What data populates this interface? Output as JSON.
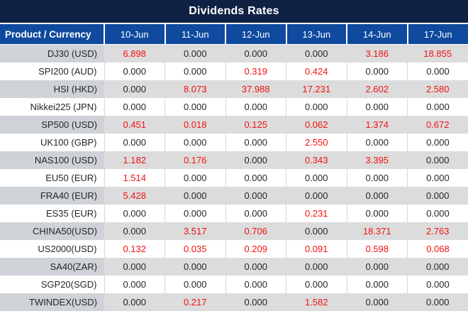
{
  "chart_data": {
    "type": "table",
    "title": "Dividends Rates",
    "columns": [
      "Product / Currency",
      "10-Jun",
      "11-Jun",
      "12-Jun",
      "13-Jun",
      "14-Jun",
      "17-Jun"
    ],
    "rows": [
      {
        "product": "DJ30 (USD)",
        "values": [
          "6.898",
          "0.000",
          "0.000",
          "0.000",
          "3.186",
          "18.855"
        ]
      },
      {
        "product": "SPI200 (AUD)",
        "values": [
          "0.000",
          "0.000",
          "0.319",
          "0.424",
          "0.000",
          "0.000"
        ]
      },
      {
        "product": "HSI (HKD)",
        "values": [
          "0.000",
          "8.073",
          "37.988",
          "17.231",
          "2.602",
          "2.580"
        ]
      },
      {
        "product": "Nikkei225 (JPN)",
        "values": [
          "0.000",
          "0.000",
          "0.000",
          "0.000",
          "0.000",
          "0.000"
        ]
      },
      {
        "product": "SP500 (USD)",
        "values": [
          "0.451",
          "0.018",
          "0.125",
          "0.062",
          "1.374",
          "0.672"
        ]
      },
      {
        "product": "UK100 (GBP)",
        "values": [
          "0.000",
          "0.000",
          "0.000",
          "2.550",
          "0.000",
          "0.000"
        ]
      },
      {
        "product": "NAS100 (USD)",
        "values": [
          "1.182",
          "0.176",
          "0.000",
          "0.343",
          "3.395",
          "0.000"
        ]
      },
      {
        "product": "EU50 (EUR)",
        "values": [
          "1.514",
          "0.000",
          "0.000",
          "0.000",
          "0.000",
          "0.000"
        ]
      },
      {
        "product": "FRA40 (EUR)",
        "values": [
          "5.428",
          "0.000",
          "0.000",
          "0.000",
          "0.000",
          "0.000"
        ]
      },
      {
        "product": "ES35 (EUR)",
        "values": [
          "0.000",
          "0.000",
          "0.000",
          "0.231",
          "0.000",
          "0.000"
        ]
      },
      {
        "product": "CHINA50(USD)",
        "values": [
          "0.000",
          "3.517",
          "0.706",
          "0.000",
          "18.371",
          "2.763"
        ]
      },
      {
        "product": "US2000(USD)",
        "values": [
          "0.132",
          "0.035",
          "0.209",
          "0.091",
          "0.598",
          "0.068"
        ]
      },
      {
        "product": "SA40(ZAR)",
        "values": [
          "0.000",
          "0.000",
          "0.000",
          "0.000",
          "0.000",
          "0.000"
        ]
      },
      {
        "product": "SGP20(SGD)",
        "values": [
          "0.000",
          "0.000",
          "0.000",
          "0.000",
          "0.000",
          "0.000"
        ]
      },
      {
        "product": "TWINDEX(USD)",
        "values": [
          "0.000",
          "0.217",
          "0.000",
          "1.582",
          "0.000",
          "0.000"
        ]
      }
    ],
    "layout_hints": {
      "highlight_rule": "non-zero values rendered in red",
      "row_striping": "odd data rows gray, even data rows white"
    }
  },
  "palette": {
    "title_bg": "#0e2142",
    "header_bg": "#0f4a9e",
    "header_text": "#ffffff",
    "stripe_bg": "#dcdcdc",
    "stripe_product_bg": "#cfd3d8",
    "plain_bg": "#ffffff",
    "grid_line": "#d6d6d6",
    "value_text": "#262626",
    "highlight_text": "#f31111"
  }
}
